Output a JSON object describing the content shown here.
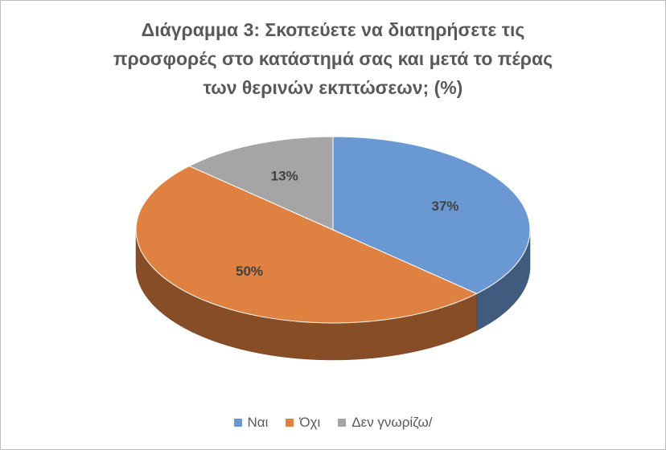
{
  "chart_data": {
    "type": "pie3d",
    "title": "Διάγραμμα 3: Σκοπεύετε να διατηρήσετε τις προσφορές στο κατάστημά σας και μετά το πέρας των θερινών εκπτώσεων; (%)",
    "categories": [
      "Ναι",
      "Όχι",
      "Δεν γνωρίζω/"
    ],
    "values": [
      37,
      50,
      13
    ],
    "value_labels": [
      "37%",
      "50%",
      "13%"
    ],
    "colors": [
      "#6a98d2",
      "#df8141",
      "#a5a5a5"
    ],
    "legend": "bottom"
  }
}
